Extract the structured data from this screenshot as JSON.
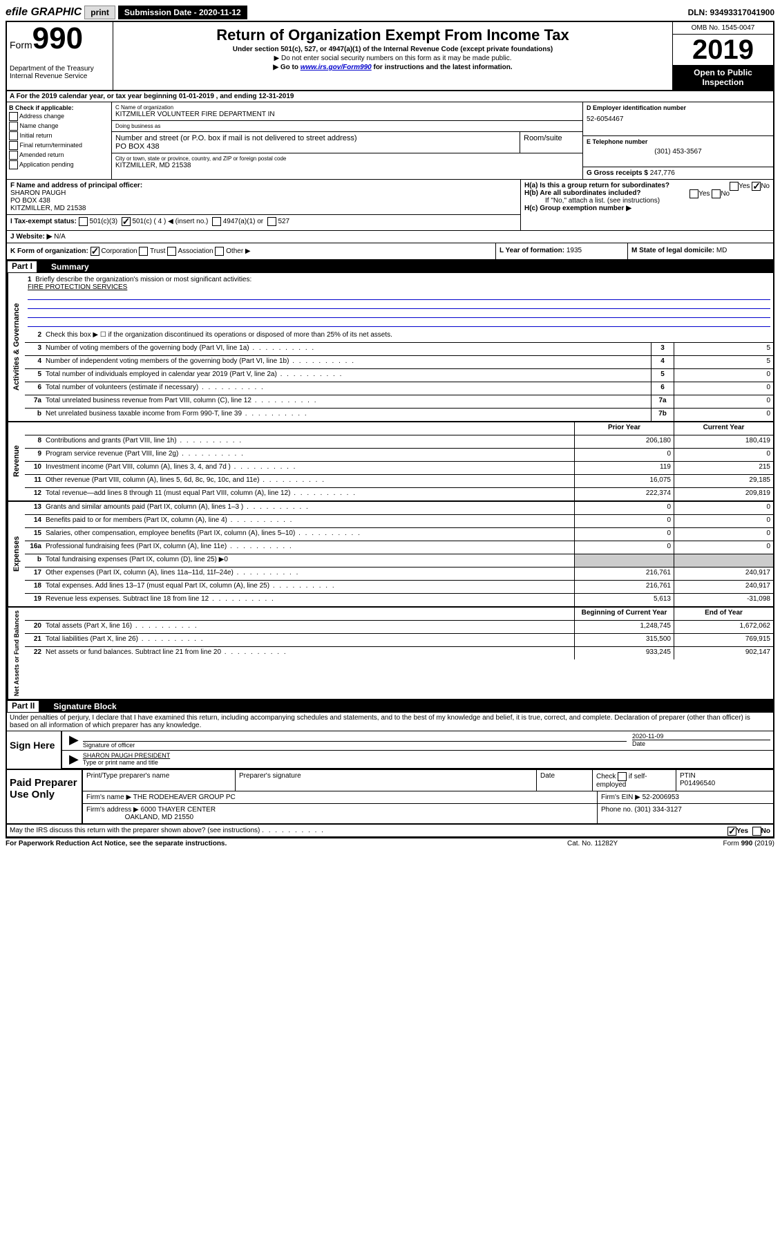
{
  "top": {
    "efile": "efile GRAPHIC",
    "print": "print",
    "submission_label": "Submission Date - 2020-11-12",
    "dln": "DLN: 93493317041900"
  },
  "header": {
    "form_label": "Form",
    "form_num": "990",
    "dept": "Department of the Treasury\nInternal Revenue Service",
    "title": "Return of Organization Exempt From Income Tax",
    "subtitle": "Under section 501(c), 527, or 4947(a)(1) of the Internal Revenue Code (except private foundations)",
    "note1": "▶ Do not enter social security numbers on this form as it may be made public.",
    "note2_pre": "▶ Go to ",
    "note2_link": "www.irs.gov/Form990",
    "note2_post": " for instructions and the latest information.",
    "omb": "OMB No. 1545-0047",
    "year": "2019",
    "open": "Open to Public Inspection"
  },
  "rowA": "A For the 2019 calendar year, or tax year beginning 01-01-2019    , and ending 12-31-2019",
  "colB": {
    "label": "B Check if applicable:",
    "items": [
      "Address change",
      "Name change",
      "Initial return",
      "Final return/terminated",
      "Amended return",
      "Application pending"
    ]
  },
  "colC": {
    "name_label": "C Name of organization",
    "name": "KITZMILLER VOLUNTEER FIRE DEPARTMENT IN",
    "dba_label": "Doing business as",
    "dba": "",
    "addr_label": "Number and street (or P.O. box if mail is not delivered to street address)",
    "room_label": "Room/suite",
    "addr": "PO BOX 438",
    "city_label": "City or town, state or province, country, and ZIP or foreign postal code",
    "city": "KITZMILLER, MD  21538"
  },
  "colD": {
    "d_label": "D Employer identification number",
    "ein": "52-6054467",
    "e_label": "E Telephone number",
    "phone": "(301) 453-3567",
    "g_label": "G Gross receipts $",
    "gross": "247,776"
  },
  "colF": {
    "label": "F  Name and address of principal officer:",
    "name": "SHARON PAUGH",
    "addr1": "PO BOX 438",
    "addr2": "KITZMILLER, MD  21538"
  },
  "colH": {
    "ha": "H(a)  Is this a group return for subordinates?",
    "hb": "H(b)  Are all subordinates included?",
    "hb_note": "If \"No,\" attach a list. (see instructions)",
    "hc": "H(c)  Group exemption number ▶"
  },
  "rowI": {
    "label": "I  Tax-exempt status:",
    "opts": [
      "501(c)(3)",
      "501(c) ( 4 ) ◀ (insert no.)",
      "4947(a)(1) or",
      "527"
    ]
  },
  "rowJ": {
    "label": "J  Website: ▶",
    "val": "N/A"
  },
  "rowK": {
    "k": "K Form of organization:",
    "opts": [
      "Corporation",
      "Trust",
      "Association",
      "Other ▶"
    ],
    "l_label": "L Year of formation:",
    "l_val": "1935",
    "m_label": "M State of legal domicile:",
    "m_val": "MD"
  },
  "part1": {
    "label": "Part I",
    "title": "Summary"
  },
  "governance": {
    "side": "Activities & Governance",
    "q1": "Briefly describe the organization's mission or most significant activities:",
    "q1_val": "FIRE PROTECTION SERVICES",
    "q2": "Check this box ▶ ☐  if the organization discontinued its operations or disposed of more than 25% of its net assets.",
    "rows": [
      {
        "n": "3",
        "d": "Number of voting members of the governing body (Part VI, line 1a)",
        "box": "3",
        "v": "5"
      },
      {
        "n": "4",
        "d": "Number of independent voting members of the governing body (Part VI, line 1b)",
        "box": "4",
        "v": "5"
      },
      {
        "n": "5",
        "d": "Total number of individuals employed in calendar year 2019 (Part V, line 2a)",
        "box": "5",
        "v": "0"
      },
      {
        "n": "6",
        "d": "Total number of volunteers (estimate if necessary)",
        "box": "6",
        "v": "0"
      },
      {
        "n": "7a",
        "d": "Total unrelated business revenue from Part VIII, column (C), line 12",
        "box": "7a",
        "v": "0"
      },
      {
        "n": "b",
        "d": "Net unrelated business taxable income from Form 990-T, line 39",
        "box": "7b",
        "v": "0"
      }
    ]
  },
  "revenue": {
    "side": "Revenue",
    "head_prior": "Prior Year",
    "head_curr": "Current Year",
    "rows": [
      {
        "n": "8",
        "d": "Contributions and grants (Part VIII, line 1h)",
        "p": "206,180",
        "c": "180,419"
      },
      {
        "n": "9",
        "d": "Program service revenue (Part VIII, line 2g)",
        "p": "0",
        "c": "0"
      },
      {
        "n": "10",
        "d": "Investment income (Part VIII, column (A), lines 3, 4, and 7d )",
        "p": "119",
        "c": "215"
      },
      {
        "n": "11",
        "d": "Other revenue (Part VIII, column (A), lines 5, 6d, 8c, 9c, 10c, and 11e)",
        "p": "16,075",
        "c": "29,185"
      },
      {
        "n": "12",
        "d": "Total revenue—add lines 8 through 11 (must equal Part VIII, column (A), line 12)",
        "p": "222,374",
        "c": "209,819"
      }
    ]
  },
  "expenses": {
    "side": "Expenses",
    "rows": [
      {
        "n": "13",
        "d": "Grants and similar amounts paid (Part IX, column (A), lines 1–3 )",
        "p": "0",
        "c": "0"
      },
      {
        "n": "14",
        "d": "Benefits paid to or for members (Part IX, column (A), line 4)",
        "p": "0",
        "c": "0"
      },
      {
        "n": "15",
        "d": "Salaries, other compensation, employee benefits (Part IX, column (A), lines 5–10)",
        "p": "0",
        "c": "0"
      },
      {
        "n": "16a",
        "d": "Professional fundraising fees (Part IX, column (A), line 11e)",
        "p": "0",
        "c": "0"
      },
      {
        "n": "b",
        "d": "Total fundraising expenses (Part IX, column (D), line 25) ▶0",
        "p": "",
        "c": "",
        "shade": true
      },
      {
        "n": "17",
        "d": "Other expenses (Part IX, column (A), lines 11a–11d, 11f–24e)",
        "p": "216,761",
        "c": "240,917"
      },
      {
        "n": "18",
        "d": "Total expenses. Add lines 13–17 (must equal Part IX, column (A), line 25)",
        "p": "216,761",
        "c": "240,917"
      },
      {
        "n": "19",
        "d": "Revenue less expenses. Subtract line 18 from line 12",
        "p": "5,613",
        "c": "-31,098"
      }
    ]
  },
  "netassets": {
    "side": "Net Assets or Fund Balances",
    "head_prior": "Beginning of Current Year",
    "head_curr": "End of Year",
    "rows": [
      {
        "n": "20",
        "d": "Total assets (Part X, line 16)",
        "p": "1,248,745",
        "c": "1,672,062"
      },
      {
        "n": "21",
        "d": "Total liabilities (Part X, line 26)",
        "p": "315,500",
        "c": "769,915"
      },
      {
        "n": "22",
        "d": "Net assets or fund balances. Subtract line 21 from line 20",
        "p": "933,245",
        "c": "902,147"
      }
    ]
  },
  "part2": {
    "label": "Part II",
    "title": "Signature Block"
  },
  "sig": {
    "perjury": "Under penalties of perjury, I declare that I have examined this return, including accompanying schedules and statements, and to the best of my knowledge and belief, it is true, correct, and complete. Declaration of preparer (other than officer) is based on all information of which preparer has any knowledge.",
    "sign_here": "Sign Here",
    "sig_officer": "Signature of officer",
    "date": "2020-11-09",
    "date_label": "Date",
    "officer": "SHARON PAUGH  PRESIDENT",
    "officer_label": "Type or print name and title"
  },
  "paid": {
    "label": "Paid Preparer Use Only",
    "h1": "Print/Type preparer's name",
    "h2": "Preparer's signature",
    "h3": "Date",
    "h4_pre": "Check",
    "h4_post": "if self-employed",
    "h5": "PTIN",
    "ptin": "P01496540",
    "firm_name_label": "Firm's name    ▶",
    "firm_name": "THE RODEHEAVER GROUP PC",
    "firm_ein_label": "Firm's EIN ▶",
    "firm_ein": "52-2006953",
    "firm_addr_label": "Firm's address ▶",
    "firm_addr1": "6000 THAYER CENTER",
    "firm_addr2": "OAKLAND, MD  21550",
    "phone_label": "Phone no.",
    "phone": "(301) 334-3127"
  },
  "discuss": "May the IRS discuss this return with the preparer shown above? (see instructions)",
  "footer": {
    "l": "For Paperwork Reduction Act Notice, see the separate instructions.",
    "c": "Cat. No. 11282Y",
    "r": "Form 990 (2019)"
  }
}
